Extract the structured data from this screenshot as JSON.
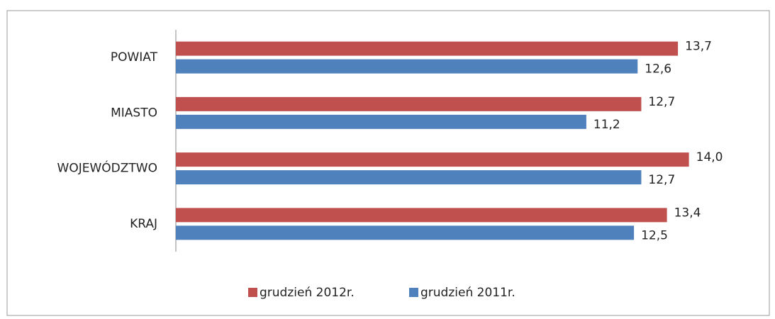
{
  "chart_data": {
    "type": "bar",
    "orientation": "horizontal",
    "categories": [
      "POWIAT",
      "MIASTO",
      "WOJEWÓDZTWO",
      "KRAJ"
    ],
    "series": [
      {
        "name": "grudzień 2012r.",
        "color": "#c0504d",
        "values": [
          13.7,
          12.7,
          14.0,
          13.4
        ],
        "value_labels": [
          "13,7",
          "12,7",
          "14,0",
          "13,4"
        ]
      },
      {
        "name": "grudzień 2011r.",
        "color": "#4f81bd",
        "values": [
          12.6,
          11.2,
          12.7,
          12.5
        ],
        "value_labels": [
          "12,6",
          "11,2",
          "12,7",
          "12,5"
        ]
      }
    ],
    "xlim": [
      0,
      16
    ],
    "legend": "bottom"
  }
}
